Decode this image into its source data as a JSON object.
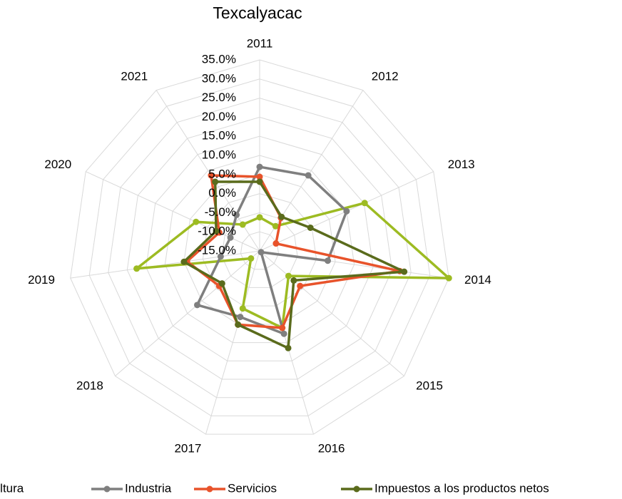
{
  "chart_data": {
    "type": "radar",
    "title": "Texcalyacac",
    "categories": [
      "2011",
      "2012",
      "2013",
      "2014",
      "2015",
      "2016",
      "2017",
      "2018",
      "2019",
      "2020",
      "2021"
    ],
    "ylim": [
      -15,
      35
    ],
    "yticks": [
      {
        "value": -15,
        "label": "-15.0%"
      },
      {
        "value": -10,
        "label": "-10.0%"
      },
      {
        "value": -5,
        "label": "-5.0%"
      },
      {
        "value": 0,
        "label": "0.0%"
      },
      {
        "value": 5,
        "label": "5.0%"
      },
      {
        "value": 10,
        "label": "10.0%"
      },
      {
        "value": 15,
        "label": "15.0%"
      },
      {
        "value": 20,
        "label": "20.0%"
      },
      {
        "value": 25,
        "label": "25.0%"
      },
      {
        "value": 30,
        "label": "30.0%"
      },
      {
        "value": 35,
        "label": "35.0%"
      }
    ],
    "grid": true,
    "legend": "bottom",
    "series": [
      {
        "name": "Agricultura",
        "color": "#9dbb22",
        "values": [
          -6.2,
          -7.3,
          15.2,
          35,
          -5,
          6,
          0.7,
          -12,
          17.5,
          3.3,
          -6.8
        ]
      },
      {
        "name": "Industria",
        "color": "#7f7f7f",
        "values": [
          7,
          8.5,
          10,
          3,
          -14.5,
          7.6,
          3,
          6.6,
          -4.7,
          -6.6,
          -3.8
        ]
      },
      {
        "name": "Servicios",
        "color": "#e8532b",
        "values": [
          4.4,
          -4.7,
          -10.3,
          22,
          -1,
          6,
          5.1,
          -1,
          4.2,
          -3.4,
          8.5
        ]
      },
      {
        "name": "Impuestos a los productos netos",
        "color": "#5a6b1c",
        "values": [
          3.1,
          -4.4,
          -0.4,
          23.2,
          -3.2,
          11.5,
          5.1,
          -2,
          5,
          -2.5,
          6.5
        ]
      }
    ]
  }
}
